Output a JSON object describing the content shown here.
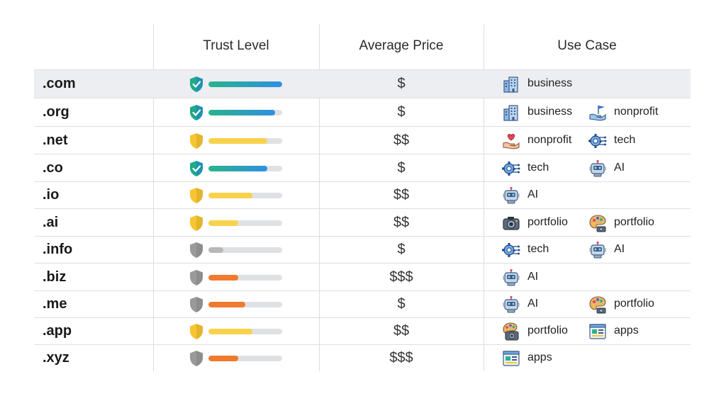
{
  "columns": {
    "trust": "Trust Level",
    "price": "Average Price",
    "use_case": "Use Case"
  },
  "colors": {
    "green_shield": "#1fa98a",
    "yellow_shield": "#f7c531",
    "gray_shield": "#9a9a9a",
    "bar_track": "#dfe1e4",
    "bar_blue_green": "#2ab38b",
    "bar_yellow": "#f9d24d",
    "bar_gray": "#b8b8b8",
    "bar_orange": "#f07a2e",
    "row_highlight": "#eceef1"
  },
  "rows": [
    {
      "tld": ".com",
      "shield": "green",
      "trust": 1.0,
      "bar": "blue_green",
      "price": "$",
      "uses": [
        {
          "icon": "building-icon",
          "label": "business"
        }
      ]
    },
    {
      "tld": ".org",
      "shield": "green",
      "trust": 0.9,
      "bar": "blue_green",
      "price": "$",
      "uses": [
        {
          "icon": "building-icon",
          "label": "business"
        },
        {
          "icon": "hand-flag-icon",
          "label": "nonprofit"
        }
      ]
    },
    {
      "tld": ".net",
      "shield": "yellow",
      "trust": 0.8,
      "bar": "yellow",
      "price": "$$",
      "uses": [
        {
          "icon": "hand-heart-icon",
          "label": "nonprofit"
        },
        {
          "icon": "gear-circuit-icon",
          "label": "tech"
        }
      ]
    },
    {
      "tld": ".co",
      "shield": "green",
      "trust": 0.8,
      "bar": "blue_green",
      "price": "$",
      "uses": [
        {
          "icon": "gear-circuit-icon",
          "label": "tech"
        },
        {
          "icon": "robot-icon",
          "label": "AI"
        }
      ]
    },
    {
      "tld": ".io",
      "shield": "yellow",
      "trust": 0.6,
      "bar": "yellow",
      "price": "$$",
      "uses": [
        {
          "icon": "robot-icon",
          "label": "AI"
        }
      ]
    },
    {
      "tld": ".ai",
      "shield": "yellow",
      "trust": 0.4,
      "bar": "yellow",
      "price": "$$",
      "uses": [
        {
          "icon": "camera-icon",
          "label": "portfolio"
        },
        {
          "icon": "palette-icon",
          "label": "portfolio"
        }
      ]
    },
    {
      "tld": ".info",
      "shield": "gray",
      "trust": 0.2,
      "bar": "gray",
      "price": "$",
      "uses": [
        {
          "icon": "gear-circuit-icon",
          "label": "tech"
        },
        {
          "icon": "robot-icon",
          "label": "AI"
        }
      ]
    },
    {
      "tld": ".biz",
      "shield": "gray",
      "trust": 0.4,
      "bar": "orange",
      "price": "$$$",
      "uses": [
        {
          "icon": "robot-icon",
          "label": "AI"
        }
      ]
    },
    {
      "tld": ".me",
      "shield": "gray",
      "trust": 0.5,
      "bar": "orange",
      "price": "$",
      "uses": [
        {
          "icon": "robot-icon",
          "label": "AI"
        },
        {
          "icon": "palette-icon",
          "label": "portfolio"
        }
      ]
    },
    {
      "tld": ".app",
      "shield": "yellow",
      "trust": 0.6,
      "bar": "yellow",
      "price": "$$",
      "uses": [
        {
          "icon": "camera-palette-icon",
          "label": "portfolio"
        },
        {
          "icon": "app-window-icon",
          "label": "apps"
        }
      ]
    },
    {
      "tld": ".xyz",
      "shield": "gray",
      "trust": 0.4,
      "bar": "orange",
      "price": "$$$",
      "uses": [
        {
          "icon": "app-window-icon",
          "label": "apps"
        }
      ]
    }
  ]
}
